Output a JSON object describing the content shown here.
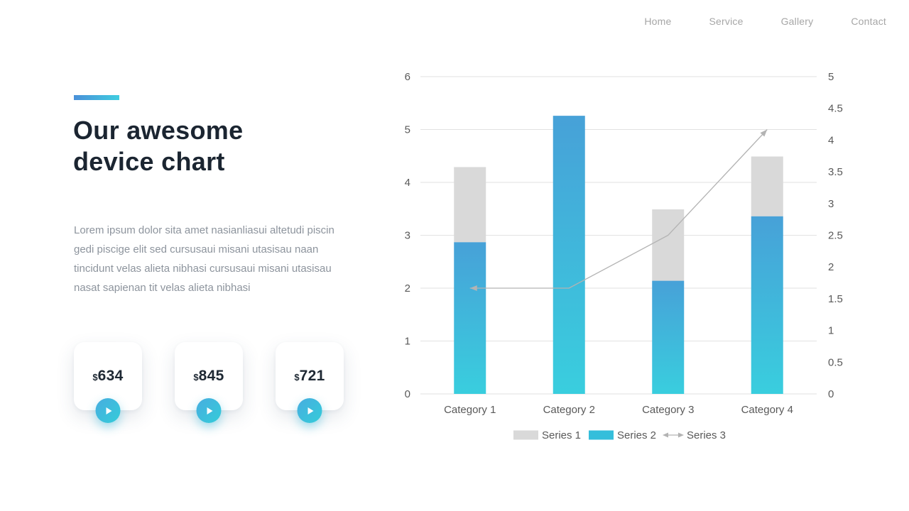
{
  "nav": {
    "items": [
      {
        "label": "Home"
      },
      {
        "label": "Service"
      },
      {
        "label": "Gallery"
      },
      {
        "label": "Contact"
      }
    ]
  },
  "hero": {
    "title": "Our awesome device chart",
    "description": "Lorem ipsum dolor sita amet nasianliasui altetudi piscin gedi piscige elit sed cursusaui misani utasisau naan tincidunt velas alieta nibhasi cursusaui misani utasisau nasat sapienan tit velas alieta nibhasi",
    "accent_colors": [
      "#4a90d9",
      "#3fcde0"
    ]
  },
  "cards": [
    {
      "currency": "$",
      "amount": "634",
      "button_icon": "play-arrow"
    },
    {
      "currency": "$",
      "amount": "845",
      "button_icon": "play-arrow"
    },
    {
      "currency": "$",
      "amount": "721",
      "button_icon": "play-arrow"
    }
  ],
  "chart_data": {
    "type": "combo",
    "categories": [
      "Category 1",
      "Category 2",
      "Category 3",
      "Category 4"
    ],
    "series": [
      {
        "name": "Series 1",
        "type": "bar",
        "role": "stack-top-segment",
        "color": "#d9d9d9",
        "values": [
          1.42,
          0,
          1.35,
          1.13
        ]
      },
      {
        "name": "Series 2",
        "type": "bar",
        "role": "stack-base-segment",
        "color_top": "#47a1d8",
        "color_bottom": "#39cede",
        "values": [
          2.87,
          5.26,
          2.14,
          3.36
        ]
      },
      {
        "name": "Series 3",
        "type": "line",
        "color": "#b3b3b3",
        "axis": "left",
        "arrowheads": "both",
        "values": [
          2,
          2,
          3,
          5
        ]
      }
    ],
    "stack_totals": [
      4.29,
      5.26,
      3.49,
      4.49
    ],
    "left_axis": {
      "min": 0,
      "max": 6,
      "step": 1,
      "ticks": [
        "0",
        "1",
        "2",
        "3",
        "4",
        "5",
        "6"
      ]
    },
    "right_axis": {
      "min": 0,
      "max": 5,
      "step": 0.5,
      "ticks": [
        "0",
        "0.5",
        "1",
        "1.5",
        "2",
        "2.5",
        "3",
        "3.5",
        "4",
        "4.5",
        "5"
      ]
    },
    "grid": "horizontal",
    "axis_text_color": "#595959",
    "gridline_color": "#e2e2e2",
    "legend": [
      {
        "label": "Series 1",
        "swatch": "rect",
        "color": "#d9d9d9"
      },
      {
        "label": "Series 2",
        "swatch": "rect",
        "color": "#35bedb"
      },
      {
        "label": "Series 3",
        "swatch": "double-arrow",
        "color": "#b3b3b3"
      }
    ]
  }
}
